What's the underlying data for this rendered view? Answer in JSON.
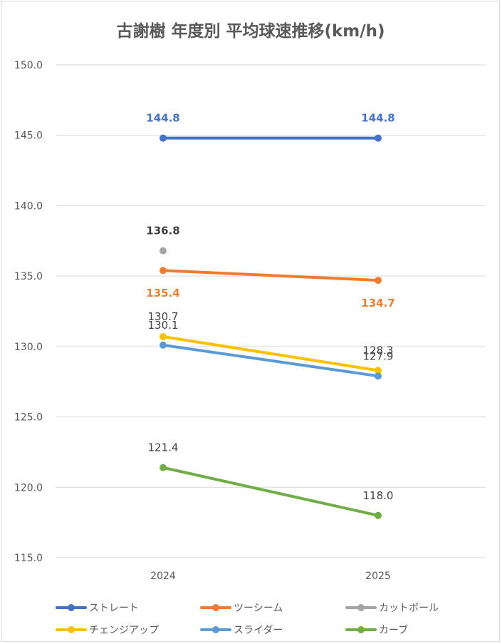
{
  "chart_data": {
    "type": "line",
    "title": "古謝樹 年度別 平均球速推移(km/h)",
    "xlabel": "",
    "ylabel": "",
    "categories": [
      "2024",
      "2025"
    ],
    "ylim": [
      115.0,
      150.0
    ],
    "yticks": [
      "115.0",
      "120.0",
      "125.0",
      "130.0",
      "135.0",
      "140.0",
      "145.0",
      "150.0"
    ],
    "grid": true,
    "legend_position": "bottom",
    "series": [
      {
        "name": "ストレート",
        "color": "#4472C4",
        "values": [
          144.8,
          144.8
        ],
        "labels": [
          "144.8",
          "144.8"
        ],
        "label_color": "#4472C4",
        "label_weight": "bold",
        "label_pos": [
          "above",
          "above"
        ]
      },
      {
        "name": "ツーシーム",
        "color": "#ED7D31",
        "values": [
          135.4,
          134.7
        ],
        "labels": [
          "135.4",
          "134.7"
        ],
        "label_color": "#ED7D31",
        "label_weight": "bold",
        "label_pos": [
          "below",
          "below"
        ]
      },
      {
        "name": "カットボール",
        "color": "#A5A5A5",
        "values": [
          136.8,
          null
        ],
        "labels": [
          "136.8",
          ""
        ],
        "label_color": "#404040",
        "label_weight": "bold",
        "label_pos": [
          "above",
          "above"
        ]
      },
      {
        "name": "チェンジアップ",
        "color": "#FFC000",
        "values": [
          130.7,
          128.3
        ],
        "labels": [
          "130.7",
          "128.3"
        ],
        "label_color": "#404040",
        "label_weight": "normal",
        "label_pos": [
          "above",
          "above"
        ]
      },
      {
        "name": "スライダー",
        "color": "#5B9BD5",
        "values": [
          130.1,
          127.9
        ],
        "labels": [
          "130.1",
          "127.9"
        ],
        "label_color": "#404040",
        "label_weight": "normal",
        "label_pos": [
          "above",
          "above"
        ]
      },
      {
        "name": "カーブ",
        "color": "#70AD47",
        "values": [
          121.4,
          118.0
        ],
        "labels": [
          "121.4",
          "118.0"
        ],
        "label_color": "#404040",
        "label_weight": "normal",
        "label_pos": [
          "above",
          "above"
        ]
      }
    ]
  }
}
